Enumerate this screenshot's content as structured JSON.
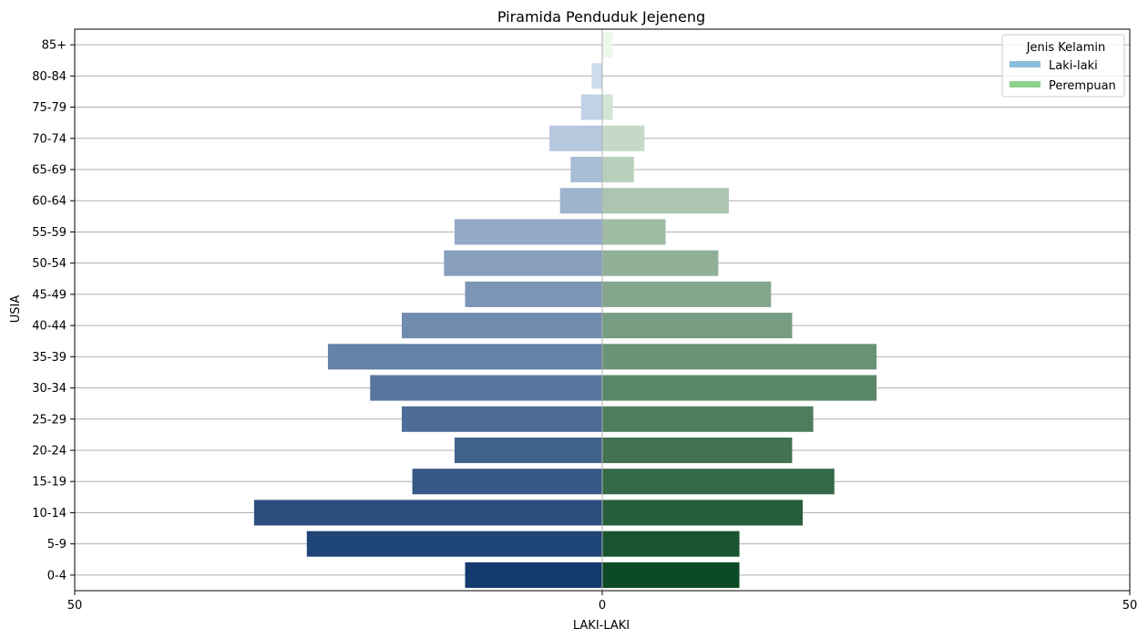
{
  "chart_data": {
    "type": "bar",
    "orientation": "horizontal",
    "title": "Piramida Penduduk Jejeneng",
    "xlabel": "LAKI-LAKI",
    "ylabel": "USIA",
    "xlim": [
      -50,
      50
    ],
    "xticks": [
      {
        "value": -50,
        "label": "50"
      },
      {
        "value": 0,
        "label": "0"
      },
      {
        "value": 50,
        "label": "50"
      }
    ],
    "categories": [
      "0-4",
      "5-9",
      "10-14",
      "15-19",
      "20-24",
      "25-29",
      "30-34",
      "35-39",
      "40-44",
      "45-49",
      "50-54",
      "55-59",
      "60-64",
      "65-69",
      "70-74",
      "75-79",
      "80-84",
      "85+"
    ],
    "series": [
      {
        "name": "Laki-laki",
        "legend_color": "#89bedc",
        "values": [
          -13,
          -28,
          -33,
          -18,
          -14,
          -19,
          -22,
          -26,
          -19,
          -13,
          -15,
          -14,
          -4,
          -3,
          -5,
          -2,
          -1,
          0
        ]
      },
      {
        "name": "Perempuan",
        "legend_color": "#8ed18b",
        "values": [
          13,
          13,
          19,
          22,
          18,
          20,
          26,
          26,
          18,
          16,
          11,
          6,
          12,
          3,
          4,
          1,
          0,
          1
        ]
      }
    ],
    "grid": {
      "horizontal": true,
      "vertical": false
    },
    "legend": {
      "title": "Jenis Kelamin",
      "placement": "top-right"
    }
  }
}
